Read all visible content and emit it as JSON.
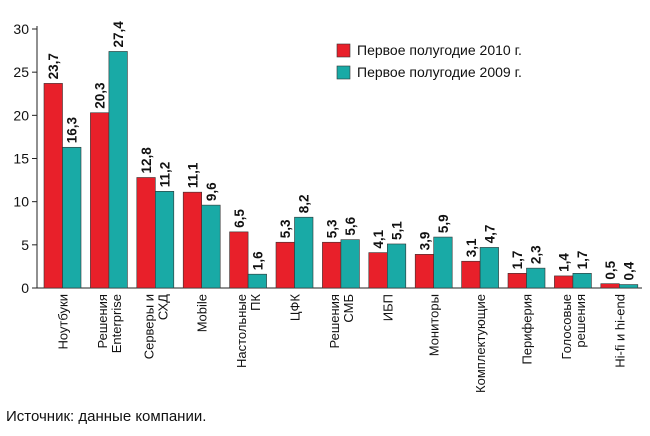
{
  "chart_data": {
    "type": "bar",
    "categories": [
      "Ноутбуки",
      "Решения Enterprise",
      "Серверы и СХД",
      "Mobile",
      "Настольные ПК",
      "ЦФК",
      "Решения СМБ",
      "ИБП",
      "Мониторы",
      "Комплектующие",
      "Периферия",
      "Голосовые решения",
      "Hi-fi и hi-end"
    ],
    "category_lines": [
      [
        "Ноутбуки"
      ],
      [
        "Решения",
        "Enterprise"
      ],
      [
        "Серверы и",
        "СХД"
      ],
      [
        "Mobile"
      ],
      [
        "Настольные",
        "ПК"
      ],
      [
        "ЦФК"
      ],
      [
        "Решения",
        "СМБ"
      ],
      [
        "ИБП"
      ],
      [
        "Мониторы"
      ],
      [
        "Комплектующие"
      ],
      [
        "Периферия"
      ],
      [
        "Голосовые",
        "решения"
      ],
      [
        "Hi-fi и hi-end"
      ]
    ],
    "series": [
      {
        "name": "Первое полугодие 2010 г.",
        "color": "#e8202a",
        "values": [
          23.7,
          20.3,
          12.8,
          11.1,
          6.5,
          5.3,
          5.3,
          4.1,
          3.9,
          3.1,
          1.7,
          1.4,
          0.5
        ],
        "labels": [
          "23,7",
          "20,3",
          "12,8",
          "11,1",
          "6,5",
          "5,3",
          "5,3",
          "4,1",
          "3,9",
          "3,1",
          "1,7",
          "1,4",
          "0,5"
        ]
      },
      {
        "name": "Первое полугодие 2009 г.",
        "color": "#19aaa6",
        "values": [
          16.3,
          27.4,
          11.2,
          9.6,
          1.6,
          8.2,
          5.6,
          5.1,
          5.9,
          4.7,
          2.3,
          1.7,
          0.4
        ],
        "labels": [
          "16,3",
          "27,4",
          "11,2",
          "9,6",
          "1,6",
          "8,2",
          "5,6",
          "5,1",
          "5,9",
          "4,7",
          "2,3",
          "1,7",
          "0,4"
        ]
      }
    ],
    "ylim": [
      0,
      30
    ],
    "yticks": [
      0,
      5,
      10,
      15,
      20,
      25,
      30
    ],
    "legend_position": "top-right",
    "grid": false
  },
  "source_text": "Источник: данные компании."
}
